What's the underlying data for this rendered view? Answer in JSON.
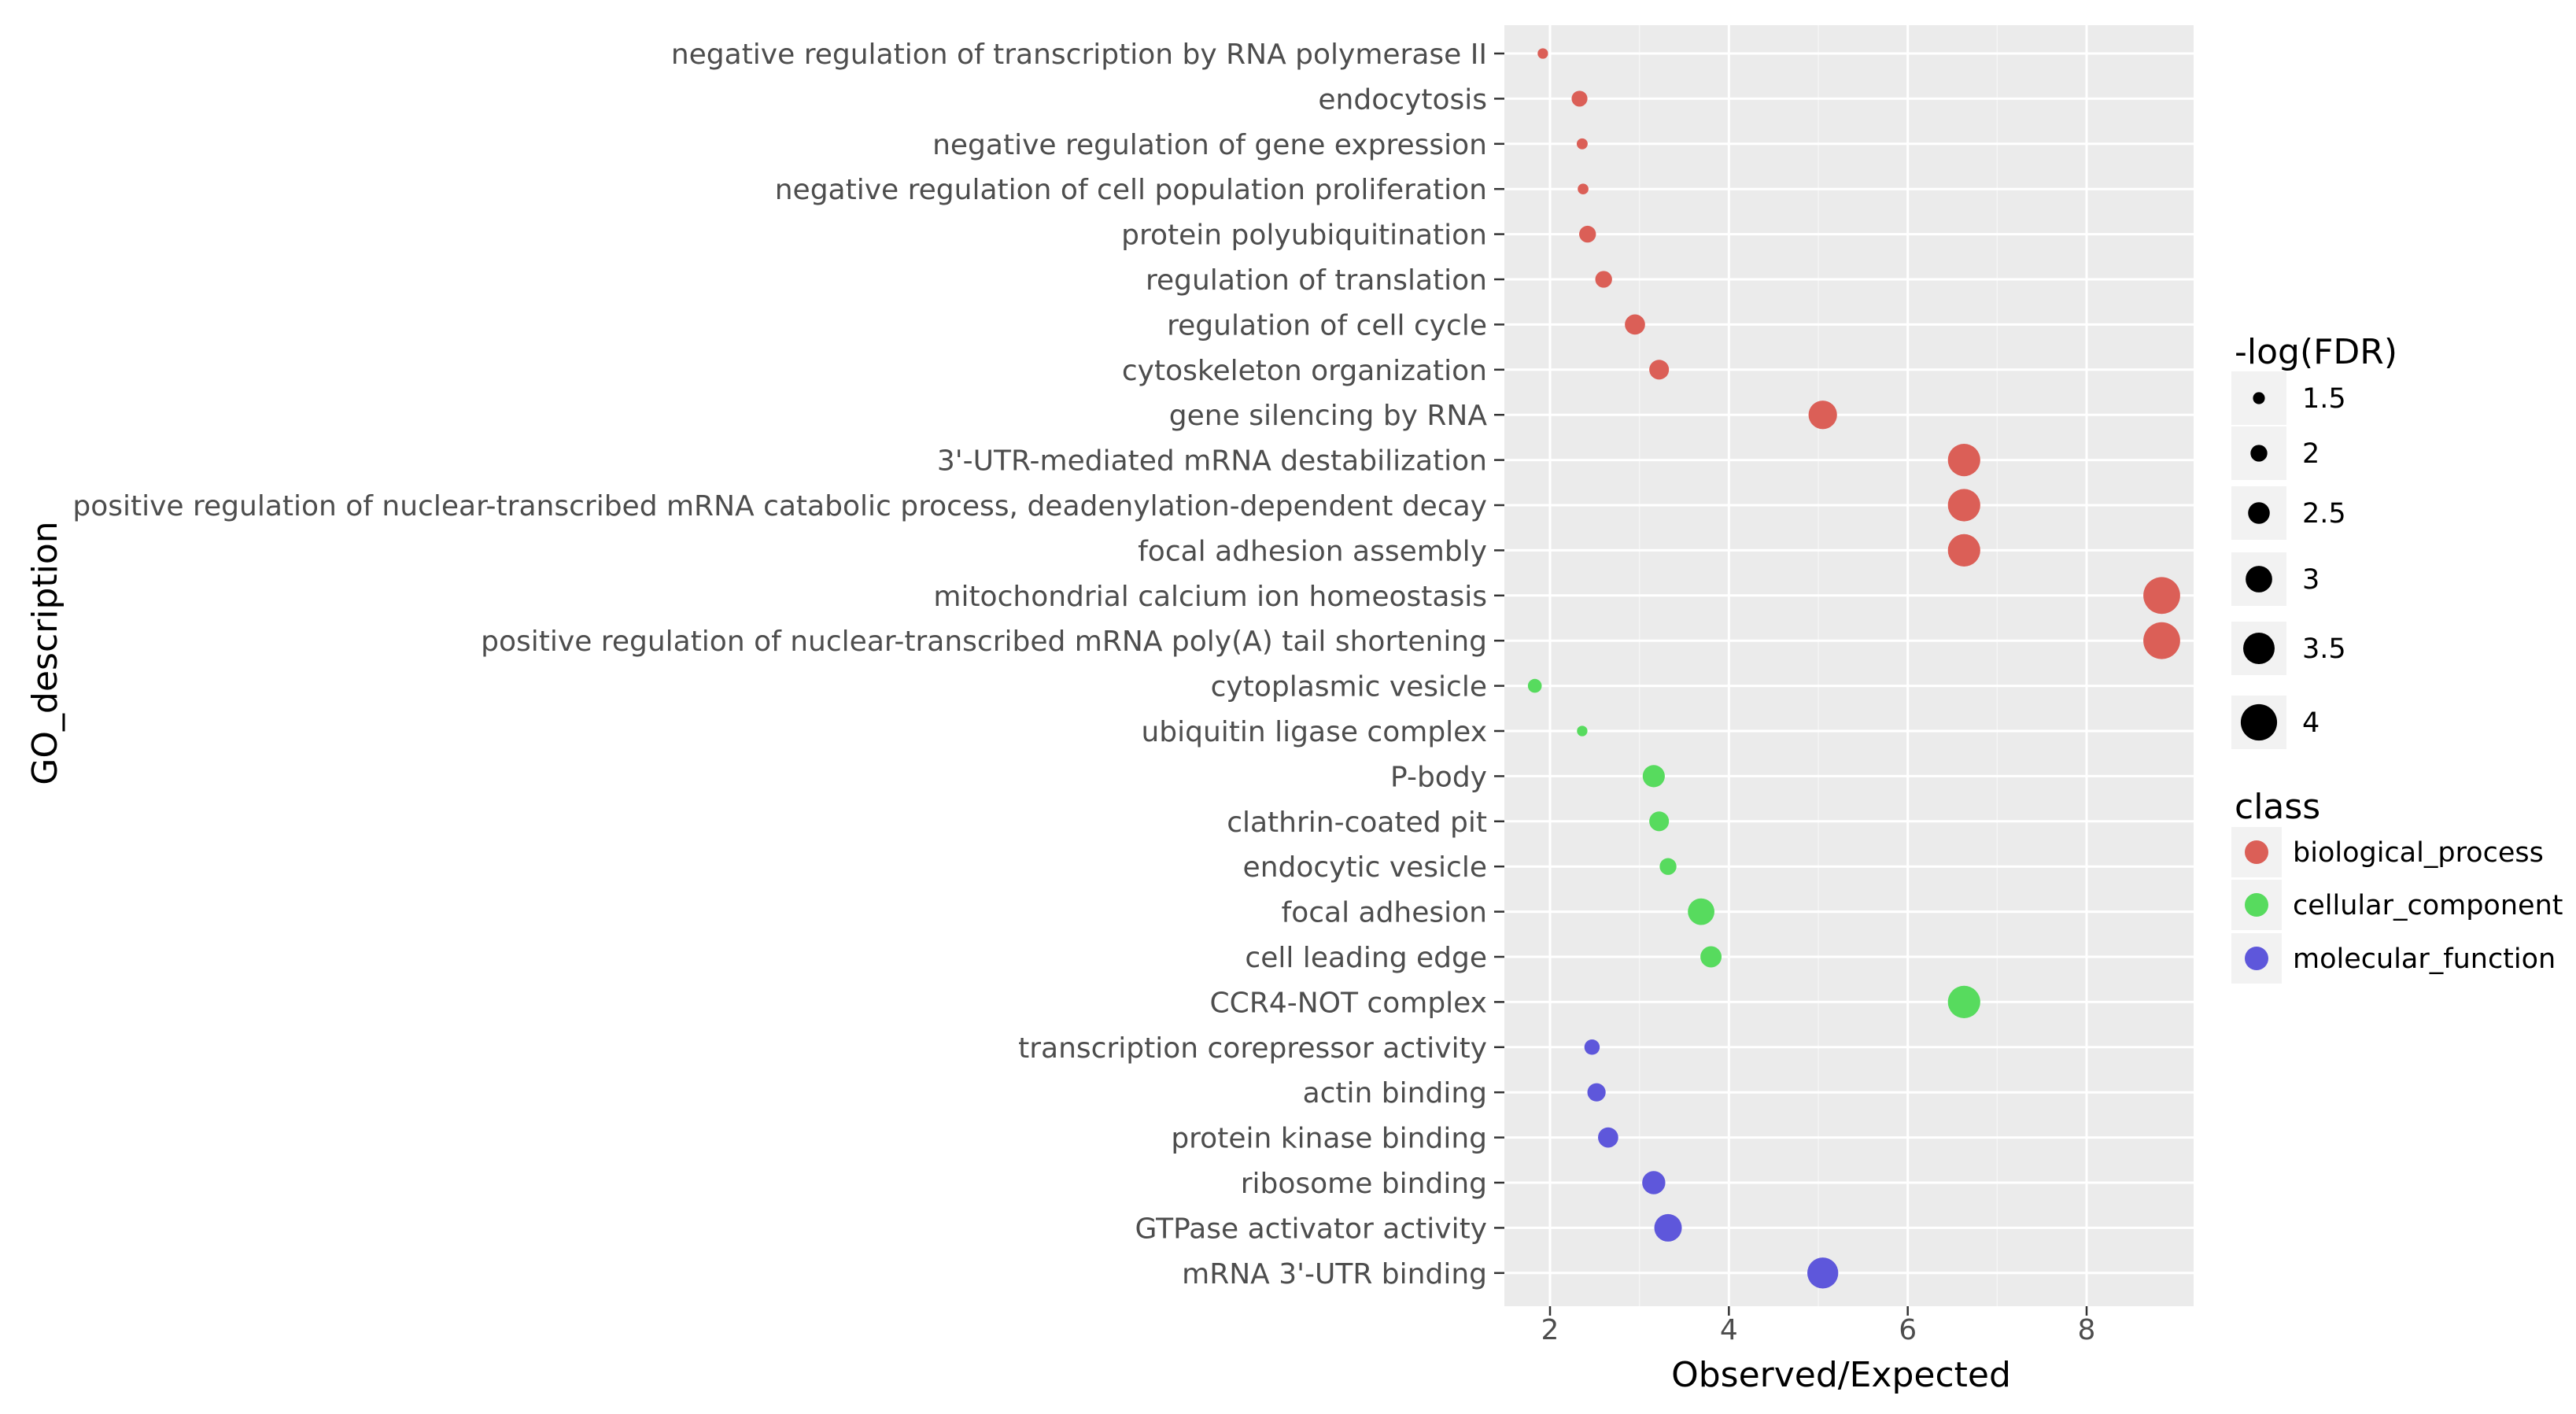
{
  "chart_data": {
    "type": "scatter",
    "title": "",
    "xlabel": "Observed/Expected",
    "ylabel": "GO_description",
    "xlim": [
      1.5,
      9.2
    ],
    "x_ticks": [
      2,
      4,
      6,
      8
    ],
    "grid": true,
    "size_legend": {
      "title": "-log(FDR)",
      "values": [
        1.5,
        2,
        2.5,
        3,
        3.5,
        4
      ],
      "labels": [
        "1.5",
        "2",
        "2.5",
        "3",
        "3.5",
        "4"
      ]
    },
    "color_legend": {
      "title": "class",
      "classes": [
        {
          "name": "biological_process",
          "color": "#DB5F57"
        },
        {
          "name": "cellular_component",
          "color": "#57DB5E"
        },
        {
          "name": "molecular_function",
          "color": "#5E57DB"
        }
      ]
    },
    "points": [
      {
        "label": "negative regulation of transcription by RNA polymerase II",
        "x": 1.92,
        "size": 1.35,
        "class": "biological_process"
      },
      {
        "label": "endocytosis",
        "x": 2.33,
        "size": 1.9,
        "class": "biological_process"
      },
      {
        "label": "negative regulation of gene expression",
        "x": 2.36,
        "size": 1.4,
        "class": "biological_process"
      },
      {
        "label": "negative regulation of cell population proliferation",
        "x": 2.37,
        "size": 1.38,
        "class": "biological_process"
      },
      {
        "label": "protein polyubiquitination",
        "x": 2.42,
        "size": 2.0,
        "class": "biological_process"
      },
      {
        "label": "regulation of translation",
        "x": 2.6,
        "size": 2.0,
        "class": "biological_process"
      },
      {
        "label": "regulation of cell cycle",
        "x": 2.95,
        "size": 2.35,
        "class": "biological_process"
      },
      {
        "label": "cytoskeleton organization",
        "x": 3.22,
        "size": 2.3,
        "class": "biological_process"
      },
      {
        "label": "gene silencing by RNA",
        "x": 5.05,
        "size": 3.2,
        "class": "biological_process"
      },
      {
        "label": "3'-UTR-mediated mRNA destabilization",
        "x": 6.63,
        "size": 3.6,
        "class": "biological_process"
      },
      {
        "label": "positive regulation of nuclear-transcribed mRNA catabolic process, deadenylation-dependent decay",
        "x": 6.63,
        "size": 3.6,
        "class": "biological_process"
      },
      {
        "label": "focal adhesion assembly",
        "x": 6.63,
        "size": 3.6,
        "class": "biological_process"
      },
      {
        "label": "mitochondrial calcium ion homeostasis",
        "x": 8.84,
        "size": 4.05,
        "class": "biological_process"
      },
      {
        "label": "positive regulation of nuclear-transcribed mRNA poly(A) tail shortening",
        "x": 8.84,
        "size": 4.05,
        "class": "biological_process"
      },
      {
        "label": "cytoplasmic vesicle",
        "x": 1.83,
        "size": 1.7,
        "class": "cellular_component"
      },
      {
        "label": "ubiquitin ligase complex",
        "x": 2.36,
        "size": 1.35,
        "class": "cellular_component"
      },
      {
        "label": "P-body",
        "x": 3.16,
        "size": 2.55,
        "class": "cellular_component"
      },
      {
        "label": "clathrin-coated pit",
        "x": 3.22,
        "size": 2.3,
        "class": "cellular_component"
      },
      {
        "label": "endocytic vesicle",
        "x": 3.32,
        "size": 2.0,
        "class": "cellular_component"
      },
      {
        "label": "focal adhesion",
        "x": 3.69,
        "size": 3.0,
        "class": "cellular_component"
      },
      {
        "label": "cell leading edge",
        "x": 3.8,
        "size": 2.45,
        "class": "cellular_component"
      },
      {
        "label": "CCR4-NOT complex",
        "x": 6.63,
        "size": 3.6,
        "class": "cellular_component"
      },
      {
        "label": "transcription corepressor activity",
        "x": 2.47,
        "size": 1.85,
        "class": "molecular_function"
      },
      {
        "label": "actin binding",
        "x": 2.52,
        "size": 2.15,
        "class": "molecular_function"
      },
      {
        "label": "protein kinase binding",
        "x": 2.65,
        "size": 2.35,
        "class": "molecular_function"
      },
      {
        "label": "ribosome binding",
        "x": 3.16,
        "size": 2.65,
        "class": "molecular_function"
      },
      {
        "label": "GTPase activator activity",
        "x": 3.32,
        "size": 3.1,
        "class": "molecular_function"
      },
      {
        "label": "mRNA 3'-UTR binding",
        "x": 5.05,
        "size": 3.45,
        "class": "molecular_function"
      }
    ]
  }
}
